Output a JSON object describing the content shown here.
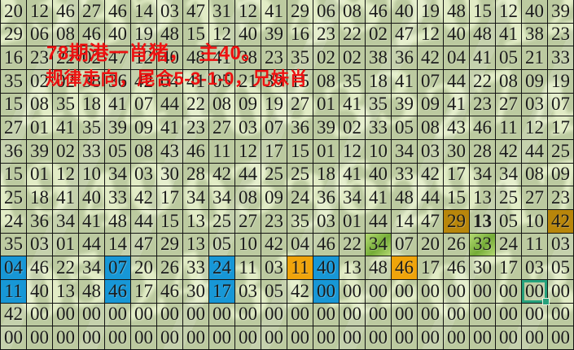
{
  "annotation": {
    "line1": "78期港一肖猪，　主40。",
    "line2": "规律走向，尾合5-3-1-0，兄妹肖",
    "color": "#ee1111"
  },
  "board": {
    "columns": 22,
    "row_count": 15,
    "rows": [
      [
        "20",
        "12",
        "46",
        "27",
        "46",
        "14",
        "03",
        "47",
        "31",
        "12",
        "41",
        "29",
        "06",
        "08",
        "46",
        "40",
        "19",
        "48",
        "15",
        "12",
        "40",
        "39"
      ],
      [
        "29",
        "06",
        "08",
        "46",
        "40",
        "19",
        "48",
        "15",
        "12",
        "40",
        "39",
        "16",
        "23",
        "22",
        "02",
        "47",
        "12",
        "40",
        "48",
        "41",
        "38",
        "23"
      ],
      [
        "16",
        "23",
        "22",
        "02",
        "47",
        "12",
        "40",
        "48",
        "41",
        "38",
        "23",
        "35",
        "02",
        "02",
        "38",
        "36",
        "42",
        "04",
        "41",
        "05",
        "21",
        "33"
      ],
      [
        "35",
        "02",
        "02",
        "38",
        "36",
        "42",
        "04",
        "41",
        "05",
        "21",
        "33",
        "15",
        "08",
        "35",
        "18",
        "41",
        "07",
        "44",
        "22",
        "08",
        "09",
        "19"
      ],
      [
        "15",
        "08",
        "35",
        "18",
        "41",
        "07",
        "44",
        "22",
        "08",
        "09",
        "19",
        "27",
        "01",
        "41",
        "35",
        "39",
        "09",
        "41",
        "23",
        "27",
        "03",
        "07"
      ],
      [
        "27",
        "01",
        "41",
        "35",
        "39",
        "09",
        "41",
        "23",
        "27",
        "03",
        "07",
        "36",
        "39",
        "02",
        "33",
        "05",
        "08",
        "43",
        "46",
        "11",
        "12",
        "17"
      ],
      [
        "36",
        "39",
        "02",
        "33",
        "05",
        "08",
        "43",
        "46",
        "11",
        "12",
        "17",
        "15",
        "01",
        "12",
        "10",
        "34",
        "03",
        "30",
        "28",
        "42",
        "44",
        "25"
      ],
      [
        "15",
        "01",
        "12",
        "10",
        "34",
        "03",
        "30",
        "28",
        "42",
        "44",
        "25",
        "25",
        "18",
        "41",
        "40",
        "33",
        "42",
        "17",
        "34",
        "34",
        "08",
        "09"
      ],
      [
        "25",
        "18",
        "41",
        "40",
        "33",
        "42",
        "17",
        "34",
        "34",
        "08",
        "09",
        "24",
        "36",
        "34",
        "41",
        "48",
        "44",
        "15",
        "13",
        "25",
        "27",
        "23"
      ],
      [
        "24",
        "36",
        "34",
        "41",
        "48",
        "44",
        "15",
        "13",
        "25",
        "27",
        "23",
        "35",
        "03",
        "01",
        "44",
        "14",
        "47",
        "29",
        "13",
        "05",
        "10",
        "42"
      ],
      [
        "35",
        "03",
        "01",
        "44",
        "14",
        "47",
        "29",
        "13",
        "05",
        "10",
        "42",
        "04",
        "46",
        "22",
        "34",
        "07",
        "20",
        "26",
        "33",
        "24",
        "11",
        "03"
      ],
      [
        "04",
        "46",
        "22",
        "34",
        "07",
        "20",
        "26",
        "33",
        "24",
        "11",
        "03",
        "11",
        "40",
        "13",
        "48",
        "46",
        "17",
        "46",
        "30",
        "17",
        "03",
        "05"
      ],
      [
        "11",
        "40",
        "13",
        "48",
        "46",
        "17",
        "46",
        "30",
        "17",
        "03",
        "05",
        "42",
        "00",
        "00",
        "00",
        "00",
        "00",
        "00",
        "00",
        "00",
        "00",
        "00"
      ],
      [
        "42",
        "00",
        "00",
        "00",
        "00",
        "00",
        "00",
        "00",
        "00",
        "00",
        "00",
        "00",
        "00",
        "00",
        "00",
        "00",
        "00",
        "00",
        "00",
        "00",
        "00",
        "00"
      ],
      [
        "00",
        "00",
        "00",
        "00",
        "00",
        "00",
        "00",
        "00",
        "00",
        "00",
        "00",
        "00",
        "00",
        "00",
        "00",
        "00",
        "00",
        "00",
        "00",
        "00",
        "00",
        "00"
      ]
    ],
    "highlights": [
      {
        "row": 10,
        "col": 18,
        "type": "gold"
      },
      {
        "row": 10,
        "col": 19,
        "type": "bold"
      },
      {
        "row": 10,
        "col": 22,
        "type": "gold"
      },
      {
        "row": 11,
        "col": 15,
        "type": "green"
      },
      {
        "row": 11,
        "col": 19,
        "type": "green"
      },
      {
        "row": 12,
        "col": 1,
        "type": "blue"
      },
      {
        "row": 12,
        "col": 5,
        "type": "blue"
      },
      {
        "row": 12,
        "col": 9,
        "type": "blue"
      },
      {
        "row": 12,
        "col": 12,
        "type": "orange"
      },
      {
        "row": 12,
        "col": 13,
        "type": "blue"
      },
      {
        "row": 12,
        "col": 16,
        "type": "orange"
      },
      {
        "row": 13,
        "col": 1,
        "type": "blue"
      },
      {
        "row": 13,
        "col": 5,
        "type": "blue"
      },
      {
        "row": 13,
        "col": 9,
        "type": "blue"
      },
      {
        "row": 13,
        "col": 13,
        "type": "blue"
      },
      {
        "row": 13,
        "col": 21,
        "type": "selected"
      }
    ],
    "colors": {
      "background": "#bccaa0",
      "watermark": "#e9f3cd",
      "grid_line": "#141414",
      "blue": "#1797d6",
      "orange": "#efa40b",
      "gold": "#b8860b",
      "green_light": "#b5da74",
      "green_dark": "#74ac36",
      "selection": "#26a17c",
      "annotation_red": "#ee1111"
    }
  },
  "watermark_digits": [
    "23",
    "35",
    "15",
    "48",
    "20",
    "12",
    "46",
    "41",
    "08",
    "33",
    "27",
    "44",
    "19",
    "40",
    "03",
    "36",
    "29",
    "17",
    "05",
    "24",
    "31",
    "42",
    "07",
    "38"
  ]
}
